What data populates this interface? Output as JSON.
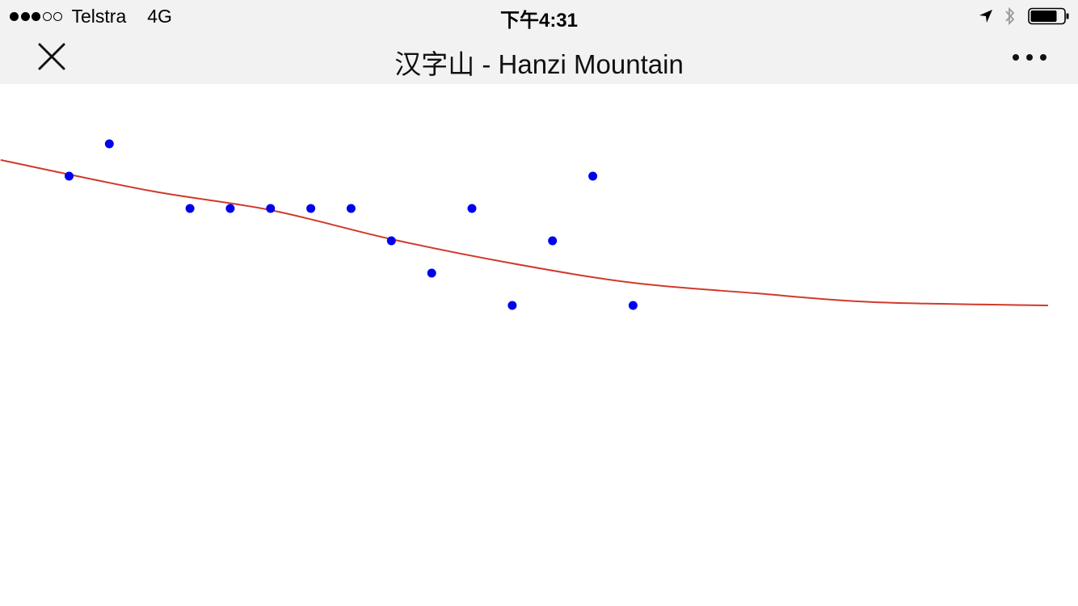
{
  "status_bar": {
    "signal_bars_filled": 3,
    "signal_bars_total": 5,
    "carrier": "Telstra",
    "network": "4G",
    "time": "下午4:31",
    "icons": [
      "location-arrow-icon",
      "bluetooth-icon",
      "battery-icon"
    ],
    "battery_level": 0.8
  },
  "nav": {
    "title": "汉字山 - Hanzi Mountain",
    "close_icon": "close-icon",
    "more_icon": "more-dots-icon"
  },
  "chart_data": {
    "type": "scatter",
    "title": "",
    "xlabel": "",
    "ylabel": "",
    "grid": false,
    "points": [
      {
        "x": 1,
        "y": 4
      },
      {
        "x": 2,
        "y": 5
      },
      {
        "x": 4,
        "y": 3
      },
      {
        "x": 5,
        "y": 3
      },
      {
        "x": 6,
        "y": 3
      },
      {
        "x": 7,
        "y": 3
      },
      {
        "x": 8,
        "y": 3
      },
      {
        "x": 9,
        "y": 2
      },
      {
        "x": 10,
        "y": 1
      },
      {
        "x": 11,
        "y": 3
      },
      {
        "x": 12,
        "y": 0
      },
      {
        "x": 13,
        "y": 2
      },
      {
        "x": 14,
        "y": 4
      },
      {
        "x": 15,
        "y": 0
      }
    ],
    "trend_line": [
      {
        "x": -0.7,
        "y": 4.5
      },
      {
        "x": 3,
        "y": 3.55
      },
      {
        "x": 6,
        "y": 2.95
      },
      {
        "x": 9,
        "y": 2.05
      },
      {
        "x": 12,
        "y": 1.3
      },
      {
        "x": 15,
        "y": 0.7
      },
      {
        "x": 18,
        "y": 0.38
      },
      {
        "x": 21,
        "y": 0.1
      },
      {
        "x": 25.3,
        "y": 0.0
      }
    ],
    "xlim": [
      -0.7,
      26
    ],
    "ylim": [
      0,
      6
    ],
    "point_color": "#0000ee",
    "line_color": "#d03a2a"
  }
}
